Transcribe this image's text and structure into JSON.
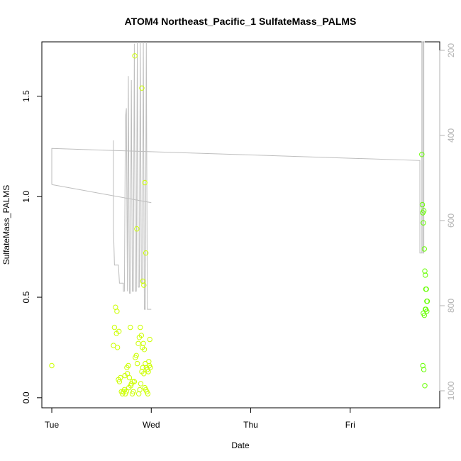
{
  "chart_data": {
    "type": "scatter",
    "title": "ATOM4 Northeast_Pacific_1 SulfateMass_PALMS",
    "xlabel": "Date",
    "ylabel": "SulfateMass_PALMS",
    "x_units": "days since Tue 00:00",
    "x_tick_labels": [
      "Tue",
      "Wed",
      "Thu",
      "Fri"
    ],
    "x_tick_values": [
      0,
      1,
      2,
      3
    ],
    "xlim": [
      -0.1,
      3.9
    ],
    "ylim": [
      -0.05,
      1.77
    ],
    "y_ticks": [
      0.0,
      0.5,
      1.0,
      1.5
    ],
    "y_tick_labels": [
      "0.0",
      "0.5",
      "1.0",
      "1.5"
    ],
    "right_axis": {
      "label": "",
      "ylim": [
        1040,
        180
      ],
      "ticks": [
        200,
        400,
        600,
        800,
        1000
      ],
      "tick_labels": [
        "200",
        "400",
        "600",
        "800",
        "1000"
      ],
      "color": "#b3b3b3"
    },
    "grid": false,
    "legend": "none",
    "colors": {
      "point_light": "#ccff00",
      "point_dark": "#66ff00",
      "line": "#bebebe"
    },
    "series": [
      {
        "name": "SulfateMass_PALMS",
        "kind": "points",
        "x": [
          0.0,
          0.62,
          0.63,
          0.64,
          0.65,
          0.66,
          0.67,
          0.68,
          0.69,
          0.7,
          0.71,
          0.72,
          0.73,
          0.74,
          0.75,
          0.76,
          0.77,
          0.78,
          0.79,
          0.8,
          0.81,
          0.82,
          0.83,
          0.84,
          0.85,
          0.86,
          0.87,
          0.88,
          0.89,
          0.9,
          0.91,
          0.92,
          0.93,
          0.94,
          0.95,
          0.96,
          0.97,
          0.98,
          0.99,
          0.875,
          0.885,
          0.895,
          0.905,
          0.915,
          0.925,
          0.935,
          0.945,
          0.955,
          0.965,
          0.975,
          0.985,
          0.655,
          0.675,
          0.735,
          0.755,
          0.775,
          0.795,
          0.815,
          0.835,
          0.855,
          0.905,
          0.915,
          0.925,
          0.935,
          0.945,
          3.72,
          3.725,
          3.73,
          3.735,
          3.74,
          3.745,
          3.75,
          3.755,
          3.76,
          3.765,
          3.77,
          3.775,
          3.73,
          3.74,
          3.75,
          3.76,
          3.77,
          3.735,
          3.745,
          3.755
        ],
        "y": [
          0.16,
          0.26,
          0.35,
          0.45,
          0.32,
          0.25,
          0.09,
          0.08,
          0.1,
          0.03,
          0.02,
          0.03,
          0.04,
          0.02,
          0.03,
          0.12,
          0.16,
          0.1,
          0.35,
          0.07,
          0.02,
          0.03,
          0.08,
          0.2,
          0.21,
          0.17,
          0.27,
          0.3,
          0.35,
          0.31,
          0.25,
          0.27,
          0.24,
          0.17,
          0.15,
          0.14,
          0.13,
          0.16,
          0.15,
          0.02,
          0.04,
          0.07,
          0.13,
          0.15,
          0.12,
          0.05,
          0.04,
          0.03,
          0.02,
          0.18,
          0.29,
          0.43,
          0.33,
          0.11,
          0.15,
          0.05,
          0.06,
          0.08,
          1.7,
          0.84,
          1.54,
          0.58,
          0.56,
          1.07,
          0.72,
          1.21,
          0.96,
          0.92,
          0.87,
          0.93,
          0.74,
          0.63,
          0.61,
          0.54,
          0.54,
          0.48,
          0.48,
          0.16,
          0.14,
          0.06,
          0.44,
          0.43,
          0.42,
          0.41,
          0.44
        ]
      },
      {
        "name": "",
        "kind": "line",
        "x": [
          0.0,
          0.0,
          3.7,
          3.7,
          3.72,
          3.72,
          3.73,
          3.73,
          3.74,
          3.74,
          3.75,
          3.75
        ],
        "y": [
          1.06,
          1.24,
          1.18,
          0.72,
          0.72,
          1.77,
          1.77,
          0.72,
          0.72,
          1.77,
          1.77,
          1.77
        ]
      },
      {
        "name": "",
        "kind": "line",
        "x": [
          0.0,
          1.0
        ],
        "y": [
          1.06,
          0.97
        ]
      },
      {
        "name": "",
        "kind": "line",
        "x": [
          0.62,
          0.62,
          0.63,
          0.64,
          0.65,
          0.67,
          0.68,
          0.69,
          0.71,
          0.72,
          0.72,
          0.73,
          0.74,
          0.75,
          0.76,
          0.76,
          0.77,
          0.78,
          0.79,
          0.8,
          0.81,
          0.82,
          0.83,
          0.84,
          0.85,
          0.86,
          0.87,
          0.88,
          0.89,
          0.9,
          0.91,
          0.92,
          0.93,
          0.94,
          0.95,
          0.96,
          0.97,
          0.98,
          0.99,
          1.0
        ],
        "y": [
          1.28,
          0.84,
          0.66,
          0.66,
          0.66,
          0.66,
          0.57,
          0.57,
          0.57,
          0.57,
          0.53,
          0.53,
          1.39,
          1.44,
          0.53,
          0.53,
          1.6,
          0.52,
          0.52,
          1.58,
          0.53,
          0.53,
          1.76,
          0.53,
          0.53,
          1.77,
          0.55,
          0.55,
          1.77,
          0.57,
          0.57,
          1.77,
          0.44,
          0.44,
          1.77,
          0.44,
          0.44,
          0.44,
          0.44,
          0.44
        ]
      }
    ]
  }
}
